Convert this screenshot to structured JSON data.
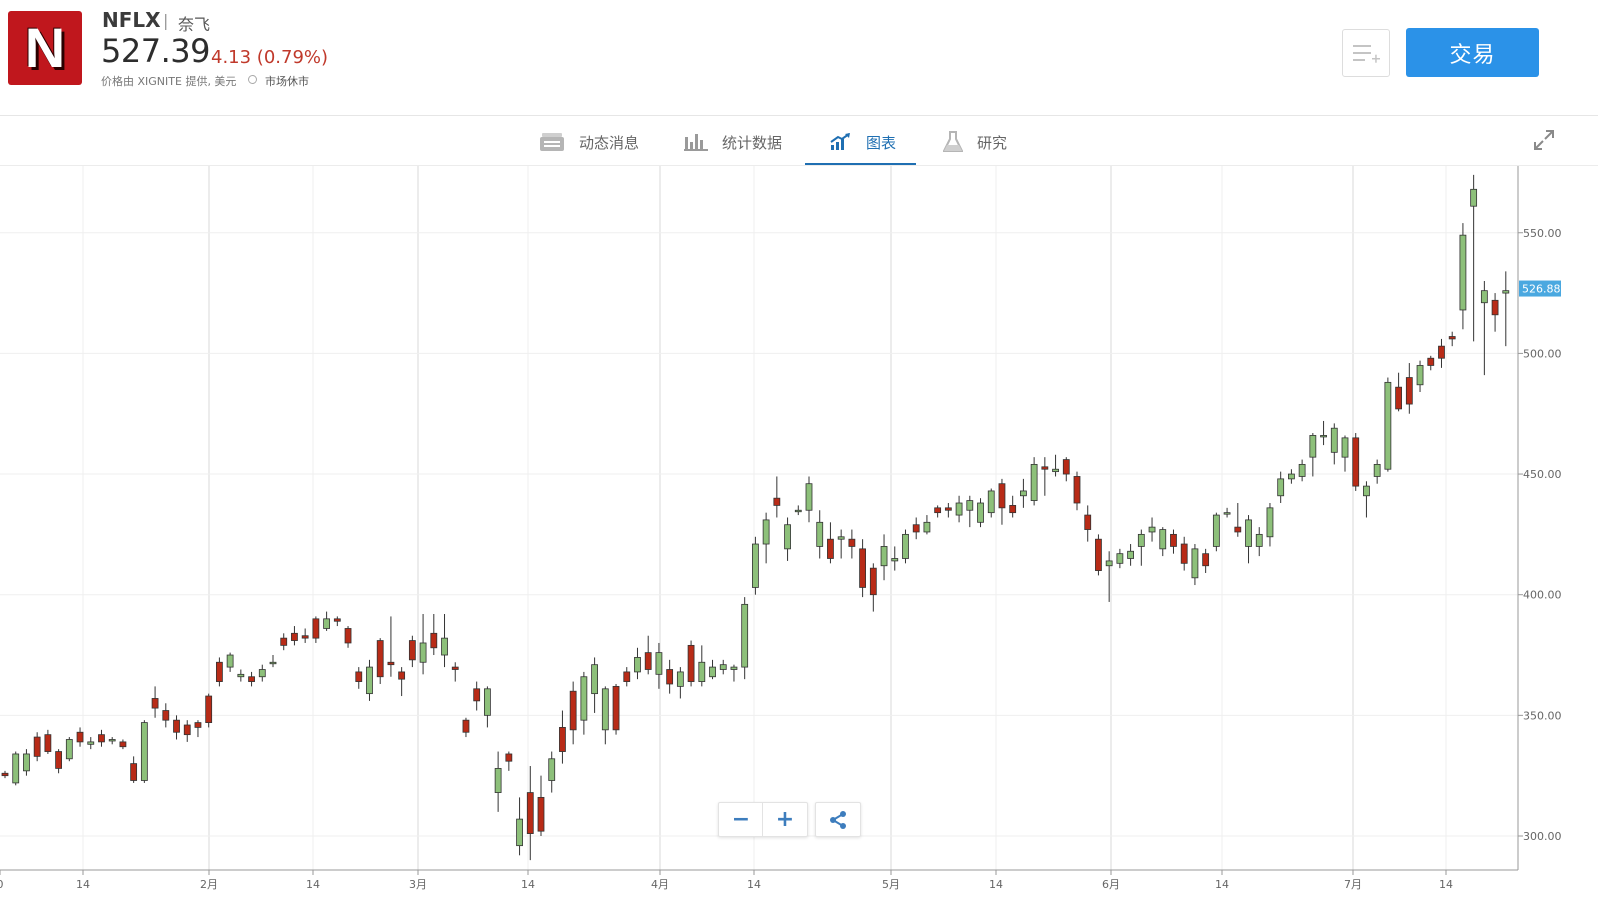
{
  "header": {
    "logo_letter": "N",
    "symbol": "NFLX",
    "separator": "|",
    "company": "奈飞",
    "price": "527.39",
    "change": "4.13 (0.79%)",
    "provider": "价格由 XIGNITE 提供, 美元",
    "market_status": "市场休市",
    "trade_label": "交易"
  },
  "tabs": [
    {
      "label": "动态消息",
      "icon": "news-icon",
      "active": false
    },
    {
      "label": "统计数据",
      "icon": "stats-icon",
      "active": false
    },
    {
      "label": "图表",
      "icon": "chart-icon",
      "active": true
    },
    {
      "label": "研究",
      "icon": "flask-icon",
      "active": false
    }
  ],
  "controls": {
    "zoom_out": "−",
    "zoom_in": "+"
  },
  "colors": {
    "up": "#8dc07a",
    "down": "#b82b17",
    "accent": "#2b92e8",
    "tab_active": "#1f6fb2",
    "last_price_bg": "#4aa8e0"
  },
  "chart_data": {
    "type": "candlestick",
    "y_ticks": [
      "550.00",
      "500.00",
      "450.00",
      "400.00",
      "350.00",
      "300.00"
    ],
    "ylim": [
      290,
      575
    ],
    "x_tick_labels": [
      "0",
      "14",
      "2月",
      "14",
      "3月",
      "14",
      "4月",
      "14",
      "5月",
      "14",
      "6月",
      "14",
      "7月",
      "14"
    ],
    "last_price": "526.88",
    "candles": [
      [
        326,
        325,
        327,
        324
      ],
      [
        322,
        334,
        335,
        321
      ],
      [
        327,
        334,
        336,
        325
      ],
      [
        341,
        333,
        343,
        331
      ],
      [
        342,
        335,
        344,
        334
      ],
      [
        335,
        328,
        336,
        326
      ],
      [
        332,
        340,
        341,
        331
      ],
      [
        343,
        339,
        345,
        337
      ],
      [
        338,
        339,
        341,
        336
      ],
      [
        342,
        339,
        344,
        337
      ],
      [
        340,
        340,
        341,
        338
      ],
      [
        339,
        337,
        340,
        336
      ],
      [
        330,
        323,
        333,
        322
      ],
      [
        323,
        347,
        348,
        322
      ],
      [
        357,
        353,
        362,
        349
      ],
      [
        352,
        348,
        355,
        345
      ],
      [
        348,
        343,
        350,
        340
      ],
      [
        346,
        342,
        348,
        339
      ],
      [
        347,
        345,
        348,
        341
      ],
      [
        358,
        347,
        359,
        345
      ],
      [
        372,
        364,
        374,
        362
      ],
      [
        370,
        375,
        376,
        368
      ],
      [
        366,
        367,
        369,
        364
      ],
      [
        366,
        364,
        368,
        362
      ],
      [
        366,
        369,
        371,
        364
      ],
      [
        372,
        372,
        375,
        370
      ],
      [
        382,
        379,
        384,
        377
      ],
      [
        384,
        381,
        387,
        379
      ],
      [
        383,
        382,
        386,
        380
      ],
      [
        390,
        382,
        391,
        380
      ],
      [
        386,
        390,
        393,
        385
      ],
      [
        390,
        389,
        391,
        387
      ],
      [
        386,
        380,
        387,
        378
      ],
      [
        368,
        364,
        370,
        361
      ],
      [
        359,
        370,
        373,
        356
      ],
      [
        381,
        366,
        382,
        363
      ],
      [
        372,
        371,
        391,
        366
      ],
      [
        368,
        365,
        370,
        358
      ],
      [
        381,
        373,
        383,
        370
      ],
      [
        372,
        380,
        392,
        367
      ],
      [
        384,
        378,
        392,
        375
      ],
      [
        375,
        382,
        392,
        370
      ],
      [
        370,
        369,
        372,
        364
      ],
      [
        348,
        343,
        349,
        341
      ],
      [
        361,
        356,
        364,
        352
      ],
      [
        350,
        361,
        362,
        345
      ],
      [
        318,
        328,
        335,
        310
      ],
      [
        334,
        331,
        335,
        327
      ],
      [
        296,
        307,
        316,
        292
      ],
      [
        318,
        301,
        329,
        290
      ],
      [
        316,
        302,
        325,
        300
      ],
      [
        323,
        332,
        335,
        318
      ],
      [
        345,
        335,
        352,
        330
      ],
      [
        360,
        344,
        364,
        338
      ],
      [
        348,
        366,
        368,
        342
      ],
      [
        359,
        371,
        374,
        351
      ],
      [
        344,
        361,
        362,
        338
      ],
      [
        362,
        344,
        363,
        342
      ],
      [
        368,
        364,
        370,
        362
      ],
      [
        368,
        374,
        378,
        365
      ],
      [
        376,
        369,
        383,
        367
      ],
      [
        367,
        376,
        380,
        361
      ],
      [
        369,
        363,
        373,
        359
      ],
      [
        362,
        368,
        370,
        357
      ],
      [
        379,
        364,
        381,
        362
      ],
      [
        364,
        372,
        379,
        362
      ],
      [
        366,
        370,
        373,
        365
      ],
      [
        369,
        371,
        373,
        367
      ],
      [
        369,
        370,
        371,
        364
      ],
      [
        370,
        396,
        399,
        365
      ],
      [
        403,
        421,
        424,
        400
      ],
      [
        421,
        431,
        434,
        413
      ],
      [
        440,
        437,
        449,
        432
      ],
      [
        419,
        429,
        432,
        414
      ],
      [
        435,
        435,
        437,
        433
      ],
      [
        435,
        446,
        449,
        430
      ],
      [
        420,
        430,
        435,
        415
      ],
      [
        423,
        415,
        430,
        413
      ],
      [
        423,
        424,
        427,
        415
      ],
      [
        423,
        420,
        427,
        415
      ],
      [
        419,
        403,
        423,
        399
      ],
      [
        411,
        400,
        413,
        393
      ],
      [
        412,
        420,
        425,
        406
      ],
      [
        414,
        415,
        420,
        410
      ],
      [
        415,
        425,
        427,
        413
      ],
      [
        429,
        426,
        432,
        423
      ],
      [
        426,
        430,
        433,
        425
      ],
      [
        436,
        434,
        437,
        432
      ],
      [
        436,
        435,
        438,
        432
      ],
      [
        433,
        438,
        441,
        430
      ],
      [
        435,
        439,
        441,
        428
      ],
      [
        430,
        438,
        440,
        428
      ],
      [
        434,
        443,
        444,
        432
      ],
      [
        446,
        436,
        448,
        429
      ],
      [
        437,
        434,
        441,
        432
      ],
      [
        441,
        443,
        448,
        436
      ],
      [
        439,
        454,
        457,
        437
      ],
      [
        453,
        452,
        457,
        441
      ],
      [
        451,
        452,
        458,
        449
      ],
      [
        456,
        450,
        457,
        447
      ],
      [
        449,
        438,
        451,
        435
      ],
      [
        433,
        427,
        437,
        422
      ],
      [
        423,
        410,
        425,
        408
      ],
      [
        412,
        414,
        418,
        397
      ],
      [
        413,
        417,
        419,
        411
      ],
      [
        415,
        418,
        421,
        412
      ],
      [
        420,
        425,
        427,
        412
      ],
      [
        426,
        428,
        432,
        422
      ],
      [
        419,
        427,
        428,
        416
      ],
      [
        425,
        420,
        427,
        417
      ],
      [
        421,
        413,
        424,
        410
      ],
      [
        407,
        419,
        421,
        404
      ],
      [
        417,
        412,
        419,
        409
      ],
      [
        420,
        433,
        434,
        418
      ],
      [
        434,
        434,
        436,
        432
      ],
      [
        428,
        426,
        438,
        424
      ],
      [
        420,
        431,
        433,
        413
      ],
      [
        420,
        425,
        428,
        416
      ],
      [
        424,
        436,
        438,
        420
      ],
      [
        441,
        448,
        451,
        438
      ],
      [
        448,
        450,
        452,
        446
      ],
      [
        449,
        454,
        456,
        447
      ],
      [
        457,
        466,
        467,
        449
      ],
      [
        466,
        466,
        472,
        462
      ],
      [
        459,
        469,
        471,
        454
      ],
      [
        457,
        465,
        466,
        451
      ],
      [
        465,
        445,
        467,
        443
      ],
      [
        441,
        445,
        447,
        432
      ],
      [
        449,
        454,
        456,
        446
      ],
      [
        452,
        488,
        490,
        451
      ],
      [
        486,
        477,
        492,
        476
      ],
      [
        490,
        479,
        496,
        475
      ],
      [
        487,
        495,
        497,
        484
      ],
      [
        498,
        495,
        499,
        493
      ],
      [
        503,
        498,
        506,
        494
      ],
      [
        507,
        506,
        509,
        503
      ],
      [
        518,
        549,
        554,
        510
      ],
      [
        561,
        568,
        574,
        505
      ],
      [
        521,
        526,
        530,
        491
      ],
      [
        522,
        516,
        525,
        509
      ],
      [
        525,
        526,
        534,
        503
      ]
    ]
  }
}
